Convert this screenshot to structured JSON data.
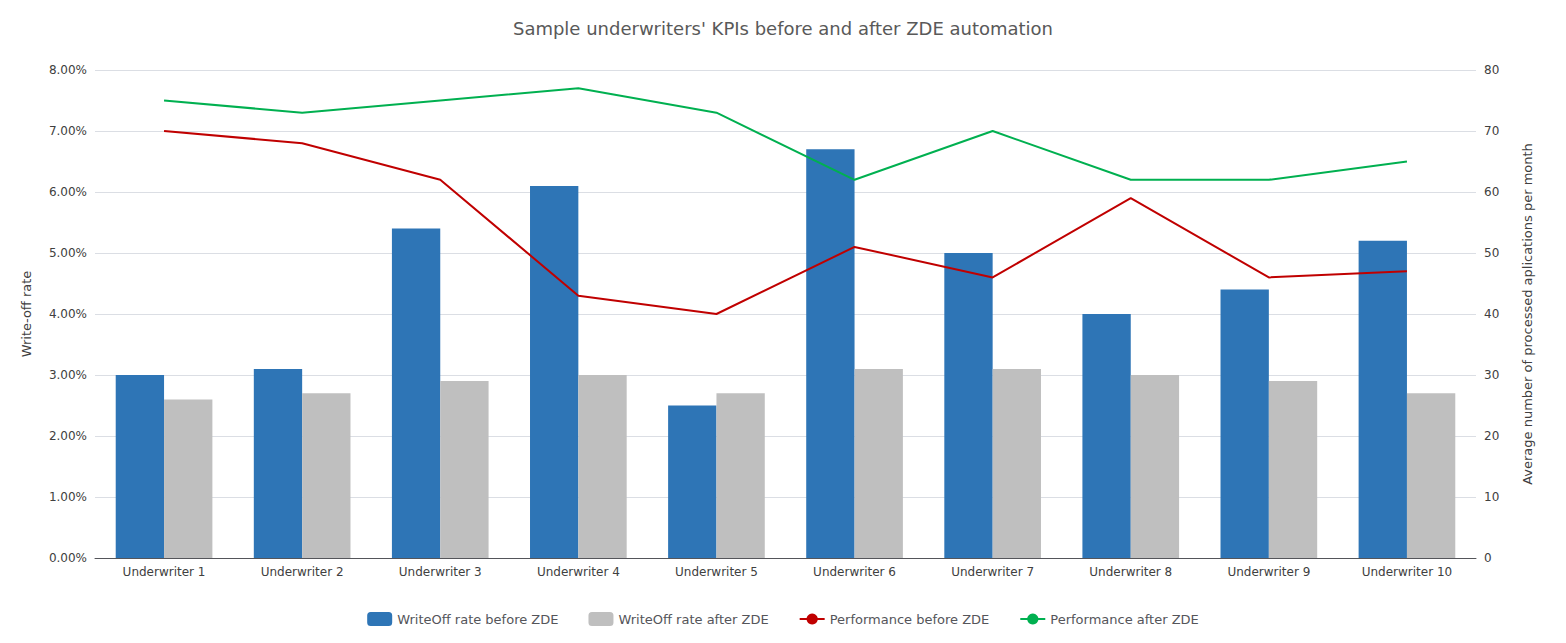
{
  "chart_data": {
    "type": "bar",
    "title": "Sample underwriters' KPIs before and after ZDE automation",
    "categories": [
      "Underwriter 1",
      "Underwriter 2",
      "Underwriter 3",
      "Underwriter 4",
      "Underwriter 5",
      "Underwriter 6",
      "Underwriter 7",
      "Underwriter 8",
      "Underwriter 9",
      "Underwriter 10"
    ],
    "series": [
      {
        "name": "WriteOff rate before ZDE",
        "type": "bar",
        "color": "#2E75B6",
        "values": [
          0.03,
          0.031,
          0.054,
          0.061,
          0.025,
          0.067,
          0.05,
          0.04,
          0.044,
          0.052
        ]
      },
      {
        "name": "WriteOff rate after ZDE",
        "type": "bar",
        "color": "#BFBFBF",
        "values": [
          0.026,
          0.027,
          0.029,
          0.03,
          0.027,
          0.031,
          0.031,
          0.03,
          0.029,
          0.027
        ]
      },
      {
        "name": "Performance before ZDE",
        "type": "line",
        "color": "#C00000",
        "axis": "y2",
        "values": [
          70,
          68,
          62,
          43,
          40,
          51,
          46,
          59,
          46,
          47
        ]
      },
      {
        "name": "Performance after ZDE",
        "type": "line",
        "color": "#00B050",
        "axis": "y2",
        "values": [
          75,
          73,
          75,
          77,
          73,
          62,
          70,
          62,
          62,
          65
        ]
      }
    ],
    "ylabel": "Write-off rate",
    "y2label": "Average number of processed aplications per month",
    "ylim": [
      0.0,
      0.08
    ],
    "yticks": [
      {
        "value": 0.0,
        "label": "0.00%"
      },
      {
        "value": 0.01,
        "label": "1.00%"
      },
      {
        "value": 0.02,
        "label": "2.00%"
      },
      {
        "value": 0.03,
        "label": "3.00%"
      },
      {
        "value": 0.04,
        "label": "4.00%"
      },
      {
        "value": 0.05,
        "label": "5.00%"
      },
      {
        "value": 0.06,
        "label": "6.00%"
      },
      {
        "value": 0.07,
        "label": "7.00%"
      },
      {
        "value": 0.08,
        "label": "8.00%"
      }
    ],
    "y2lim": [
      0,
      80
    ],
    "y2ticks": [
      0,
      10,
      20,
      30,
      40,
      50,
      60,
      70,
      80
    ],
    "grid": true,
    "legend": "bottom"
  }
}
